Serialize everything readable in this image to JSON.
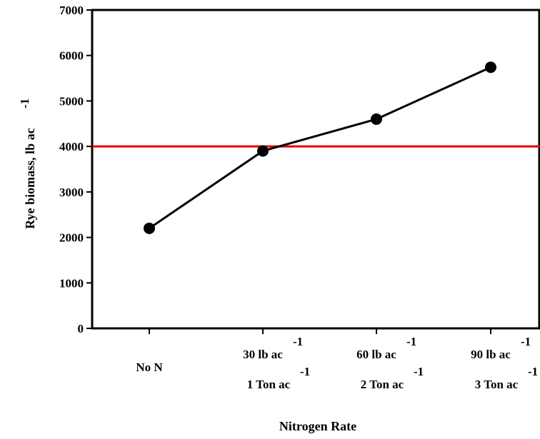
{
  "chart_data": {
    "type": "line",
    "title": "",
    "xlabel": "Nitrogen Rate",
    "ylabel": {
      "main": "Rye biomass, lb ac",
      "sup": "-1"
    },
    "ylim": [
      0,
      7000
    ],
    "yticks": [
      "0",
      "1000",
      "2000",
      "3000",
      "4000",
      "5000",
      "6000",
      "7000"
    ],
    "categories": [
      {
        "line1": "No N",
        "line1_sup": "",
        "line2": "",
        "line2_sup": ""
      },
      {
        "line1": "30 lb ac",
        "line1_sup": "-1",
        "line2": "1 Ton ac",
        "line2_sup": "-1"
      },
      {
        "line1": "60 lb ac",
        "line1_sup": "-1",
        "line2": "2 Ton ac",
        "line2_sup": "-1"
      },
      {
        "line1": "90 lb ac",
        "line1_sup": "-1",
        "line2": "3 Ton ac",
        "line2_sup": "-1"
      }
    ],
    "series": [
      {
        "values": [
          2200,
          3900,
          4600,
          5740
        ],
        "color": "#000000"
      }
    ],
    "reference_line": {
      "y": 4000,
      "color": "#e00000"
    },
    "grid": false,
    "legend": "none"
  }
}
